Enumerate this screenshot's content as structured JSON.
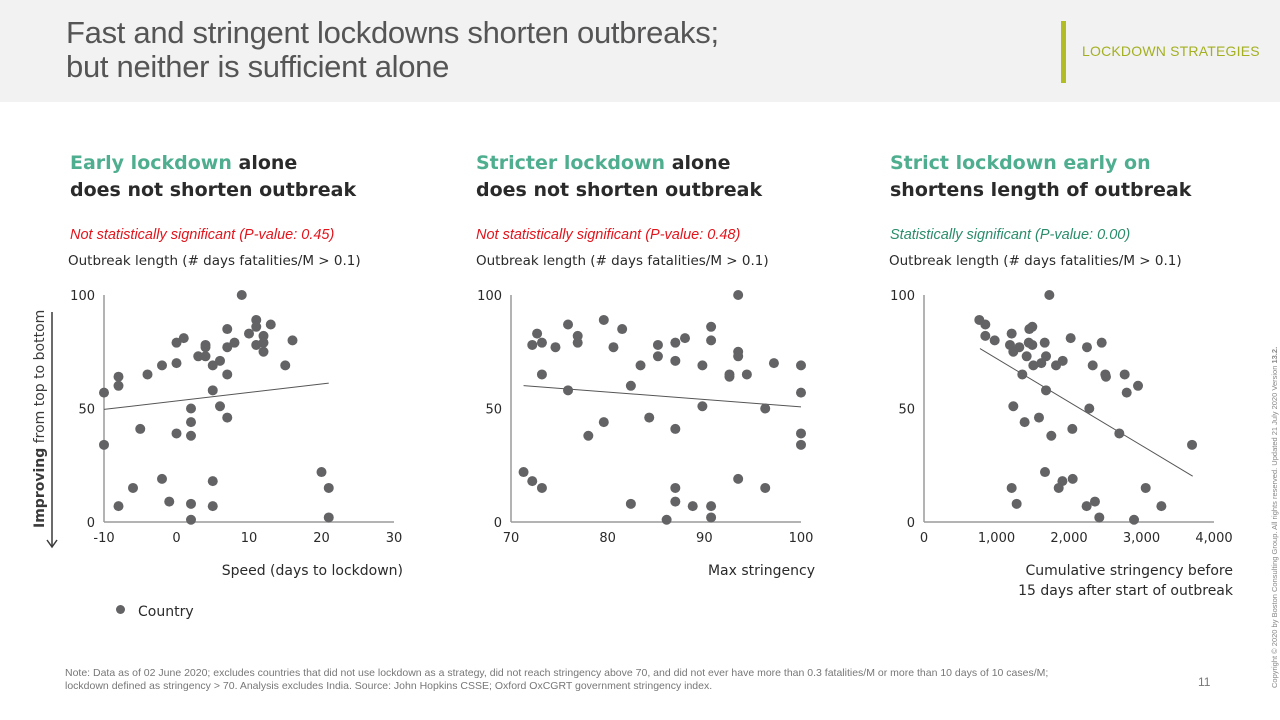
{
  "header": {
    "title_line1": "Fast and stringent lockdowns shorten outbreaks;",
    "title_line2": "but neither is sufficient alone",
    "section_label": "LOCKDOWN STRATEGIES"
  },
  "side_label": {
    "bold": "Improving",
    "rest": " from top to bottom",
    "arrow_icon": "arrow-down-icon"
  },
  "legend": {
    "marker_icon": "circle-marker",
    "label": "Country"
  },
  "colors": {
    "accent_green": "#4fae8f",
    "significant_green": "#2a8c6a",
    "not_significant_red": "#e2141c",
    "marker_gray": "#636366",
    "section_olive": "#b2bc24"
  },
  "note": "Note: Data as of 02 June 2020; excludes countries that did not use lockdown as a strategy, did not reach stringency above 70, and did not ever have more than 0.3 fatalities/M or more than 10 days of 10 cases/M; lockdown defined as stringency > 70.  Analysis excludes India. Source: John Hopkins CSSE; Oxford OxCGRT government stringency index.",
  "page_number": "11",
  "copyright": {
    "text": "Copyright © 2020 by Boston Consulting Group. All rights reserved. Updated 21 July 2020 Version ",
    "version": "13.2."
  },
  "panels": [
    {
      "title_accent": "Early lockdown",
      "title_rest1": " alone",
      "title_line2": "does not shorten outbreak",
      "significance": "Not statistically significant (P-value: 0.45)",
      "ylabel": "Outbreak length (# days fatalities/M > 0.1)",
      "xlabel_line1": "Speed (days to lockdown)",
      "xlabel_line2": ""
    },
    {
      "title_accent": "Stricter lockdown",
      "title_rest1": " alone",
      "title_line2": "does not shorten outbreak",
      "significance": "Not statistically significant (P-value: 0.48)",
      "ylabel": "Outbreak length (# days fatalities/M > 0.1)",
      "xlabel_line1": "Max stringency",
      "xlabel_line2": ""
    },
    {
      "title_accent": "Strict lockdown early on",
      "title_rest1": "",
      "title_line2": "shortens length of outbreak",
      "significance": "Statistically significant (P-value: 0.00)",
      "ylabel": "Outbreak length (# days fatalities/M > 0.1)",
      "xlabel_line1": "Cumulative stringency before",
      "xlabel_line2": "15 days after start of outbreak"
    }
  ],
  "chart_data": [
    {
      "type": "scatter",
      "title": "Early lockdown alone does not shorten outbreak",
      "xlabel": "Speed (days to lockdown)",
      "ylabel": "Outbreak length (# days fatalities/M > 0.1)",
      "xlim": [
        -10,
        30
      ],
      "ylim": [
        0,
        100
      ],
      "xticks": [
        -10,
        0,
        10,
        20,
        30
      ],
      "xtick_labels": [
        "-10",
        "0",
        "10",
        "20",
        "30"
      ],
      "yticks": [
        0,
        50,
        100
      ],
      "ytick_labels": [
        "0",
        "50",
        "100"
      ],
      "grid": false,
      "legend": "bottom-left",
      "series": [
        {
          "name": "Country",
          "points": [
            [
              9,
              100
            ],
            [
              11,
              89
            ],
            [
              11,
              86
            ],
            [
              13,
              87
            ],
            [
              10,
              83
            ],
            [
              12,
              82
            ],
            [
              12,
              79
            ],
            [
              11,
              78
            ],
            [
              12,
              75
            ],
            [
              16,
              80
            ],
            [
              15,
              69
            ],
            [
              7,
              85
            ],
            [
              8,
              79
            ],
            [
              7,
              77
            ],
            [
              4,
              78
            ],
            [
              4,
              77
            ],
            [
              1,
              81
            ],
            [
              0,
              79
            ],
            [
              3,
              73
            ],
            [
              4,
              73
            ],
            [
              6,
              71
            ],
            [
              5,
              69
            ],
            [
              7,
              65
            ],
            [
              0,
              70
            ],
            [
              -2,
              69
            ],
            [
              -4,
              65
            ],
            [
              -8,
              64
            ],
            [
              -8,
              60
            ],
            [
              -10,
              57
            ],
            [
              5,
              58
            ],
            [
              2,
              50
            ],
            [
              6,
              51
            ],
            [
              7,
              46
            ],
            [
              2,
              44
            ],
            [
              -5,
              41
            ],
            [
              0,
              39
            ],
            [
              2,
              38
            ],
            [
              -10,
              34
            ],
            [
              -2,
              19
            ],
            [
              5,
              18
            ],
            [
              -6,
              15
            ],
            [
              -1,
              9
            ],
            [
              2,
              8
            ],
            [
              -8,
              7
            ],
            [
              5,
              7
            ],
            [
              2,
              1
            ],
            [
              20,
              22
            ],
            [
              21,
              15
            ],
            [
              21,
              2
            ]
          ]
        }
      ],
      "trendline": [
        [
          -10,
          49.6
        ],
        [
          21,
          61.2
        ]
      ],
      "p_value": 0.45
    },
    {
      "type": "scatter",
      "title": "Stricter lockdown alone does not shorten outbreak",
      "xlabel": "Max stringency",
      "ylabel": "Outbreak length (# days fatalities/M > 0.1)",
      "xlim": [
        70,
        100
      ],
      "ylim": [
        0,
        100
      ],
      "xticks": [
        70,
        80,
        90,
        100
      ],
      "xtick_labels": [
        "70",
        "80",
        "90",
        "100"
      ],
      "yticks": [
        0,
        50,
        100
      ],
      "ytick_labels": [
        "0",
        "50",
        "100"
      ],
      "grid": false,
      "series": [
        {
          "name": "Country",
          "points": [
            [
              93.5,
              100
            ],
            [
              79.6,
              89
            ],
            [
              75.9,
              87
            ],
            [
              81.5,
              85
            ],
            [
              90.7,
              86
            ],
            [
              72.7,
              83
            ],
            [
              76.9,
              82
            ],
            [
              72.2,
              78
            ],
            [
              73.2,
              79
            ],
            [
              74.6,
              77
            ],
            [
              76.9,
              79
            ],
            [
              80.6,
              77
            ],
            [
              88,
              81
            ],
            [
              87,
              79
            ],
            [
              85.2,
              78
            ],
            [
              90.7,
              80
            ],
            [
              93.5,
              75
            ],
            [
              93.5,
              73
            ],
            [
              85.2,
              73
            ],
            [
              87,
              71
            ],
            [
              83.4,
              69
            ],
            [
              89.8,
              69
            ],
            [
              97.2,
              70
            ],
            [
              100,
              69
            ],
            [
              92.6,
              65
            ],
            [
              92.6,
              64
            ],
            [
              94.4,
              65
            ],
            [
              73.2,
              65
            ],
            [
              82.4,
              60
            ],
            [
              75.9,
              58
            ],
            [
              100,
              57
            ],
            [
              89.8,
              51
            ],
            [
              96.3,
              50
            ],
            [
              84.3,
              46
            ],
            [
              79.6,
              44
            ],
            [
              87,
              41
            ],
            [
              78,
              38
            ],
            [
              100,
              39
            ],
            [
              100,
              34
            ],
            [
              71.3,
              22
            ],
            [
              72.2,
              18
            ],
            [
              73.2,
              15
            ],
            [
              87,
              15
            ],
            [
              93.5,
              19
            ],
            [
              96.3,
              15
            ],
            [
              82.4,
              8
            ],
            [
              87,
              9
            ],
            [
              88.8,
              7
            ],
            [
              90.7,
              7
            ],
            [
              90.7,
              2
            ],
            [
              86.1,
              1
            ]
          ]
        }
      ],
      "trendline": [
        [
          71.3,
          60.1
        ],
        [
          100,
          50.7
        ]
      ],
      "p_value": 0.48
    },
    {
      "type": "scatter",
      "title": "Strict lockdown early on shortens length of outbreak",
      "xlabel": "Cumulative stringency before 15 days after start of outbreak",
      "ylabel": "Outbreak length (# days fatalities/M > 0.1)",
      "xlim": [
        0,
        4000
      ],
      "ylim": [
        0,
        100
      ],
      "xticks": [
        0,
        1000,
        2000,
        3000,
        4000
      ],
      "xtick_labels": [
        "0",
        "1,000",
        "2,000",
        "3,000",
        "4,000"
      ],
      "yticks": [
        0,
        50,
        100
      ],
      "ytick_labels": [
        "0",
        "50",
        "100"
      ],
      "grid": false,
      "series": [
        {
          "name": "Country",
          "points": [
            [
              1729,
              100
            ],
            [
              763,
              89
            ],
            [
              846,
              87
            ],
            [
              846,
              82
            ],
            [
              975,
              80
            ],
            [
              1209,
              83
            ],
            [
              1186,
              78
            ],
            [
              1232,
              75
            ],
            [
              1315,
              77
            ],
            [
              1453,
              85
            ],
            [
              1494,
              86
            ],
            [
              1445,
              79
            ],
            [
              1494,
              78
            ],
            [
              1665,
              79
            ],
            [
              1416,
              73
            ],
            [
              1683,
              73
            ],
            [
              1508,
              69
            ],
            [
              1618,
              70
            ],
            [
              1821,
              69
            ],
            [
              1913,
              71
            ],
            [
              2023,
              81
            ],
            [
              2248,
              77
            ],
            [
              2451,
              79
            ],
            [
              2327,
              69
            ],
            [
              2501,
              65
            ],
            [
              2510,
              64
            ],
            [
              2768,
              65
            ],
            [
              2796,
              57
            ],
            [
              2952,
              60
            ],
            [
              1356,
              65
            ],
            [
              1683,
              58
            ],
            [
              1232,
              51
            ],
            [
              2280,
              50
            ],
            [
              1586,
              46
            ],
            [
              1388,
              44
            ],
            [
              2046,
              41
            ],
            [
              1756,
              38
            ],
            [
              2694,
              39
            ],
            [
              3697,
              34
            ],
            [
              1669,
              22
            ],
            [
              1909,
              18
            ],
            [
              1858,
              15
            ],
            [
              2051,
              19
            ],
            [
              1209,
              15
            ],
            [
              1278,
              8
            ],
            [
              3058,
              15
            ],
            [
              3274,
              7
            ],
            [
              2243,
              7
            ],
            [
              2358,
              9
            ],
            [
              2418,
              2
            ],
            [
              2897,
              1
            ]
          ]
        }
      ],
      "trendline": [
        [
          772,
          76.4
        ],
        [
          3706,
          20.2
        ]
      ],
      "p_value": 0.0
    }
  ]
}
